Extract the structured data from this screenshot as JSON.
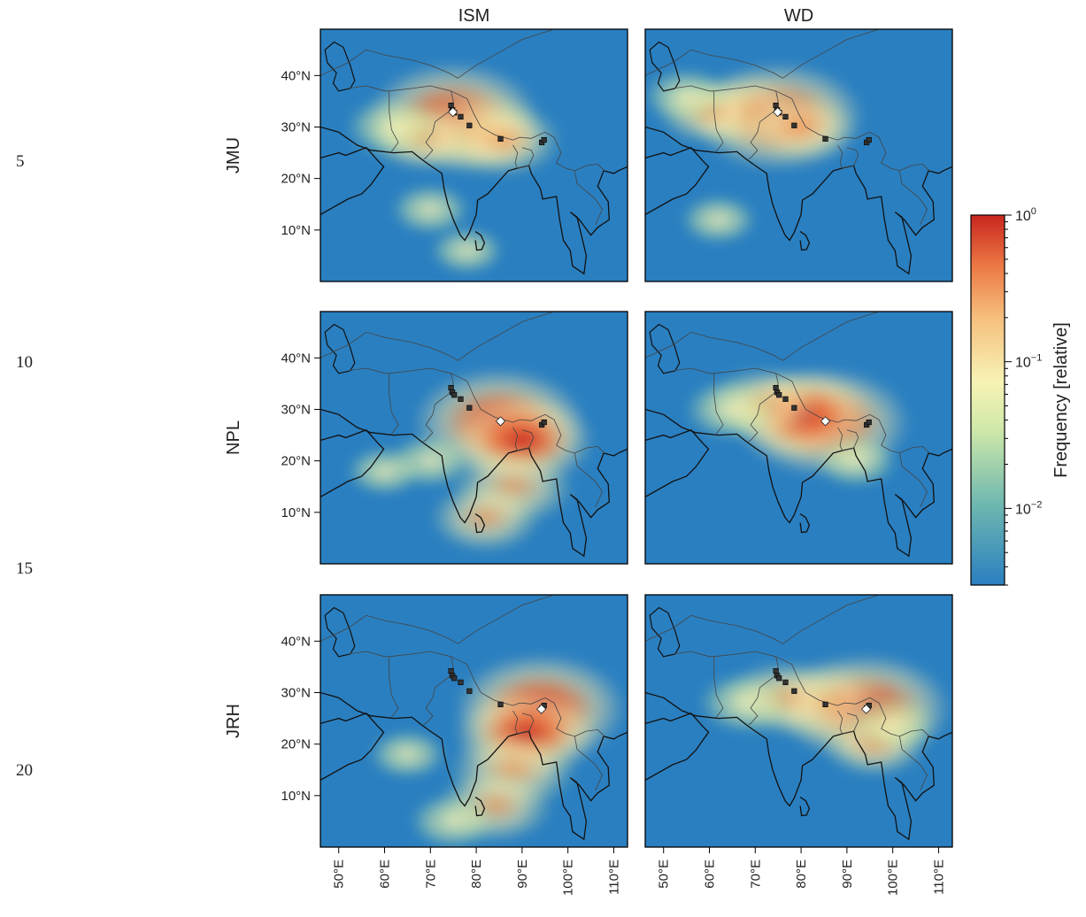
{
  "line_numbers": [
    "5",
    "10",
    "15",
    "20"
  ],
  "columns": [
    "ISM",
    "WD"
  ],
  "rows": [
    "JMU",
    "NPL",
    "JRH"
  ],
  "colorbar_label": "Frequency [relative]",
  "colorbar_ticks": [
    {
      "base": "10",
      "exp": "0"
    },
    {
      "base": "10",
      "exp": "−1"
    },
    {
      "base": "10",
      "exp": "−2"
    }
  ],
  "chart_data": {
    "type": "heatmap",
    "panel_titles": [
      "ISM",
      "WD"
    ],
    "row_labels": [
      "JMU",
      "NPL",
      "JRH"
    ],
    "lat_ticks": [
      "10°N",
      "20°N",
      "30°N",
      "40°N"
    ],
    "lon_ticks": [
      "50°E",
      "60°E",
      "70°E",
      "80°E",
      "90°E",
      "100°E",
      "110°E"
    ],
    "lon_range": [
      46,
      113
    ],
    "lat_range": [
      0,
      49
    ],
    "colorscale": "log",
    "color_range": [
      0.003,
      1
    ],
    "colors": {
      "low": "#2a7fc0",
      "mid": "#f7f3b5",
      "high": "#c8251e"
    },
    "stations": [
      {
        "lon": 74.5,
        "lat": 34.2
      },
      {
        "lon": 74.8,
        "lat": 33.3
      },
      {
        "lon": 75.2,
        "lat": 32.8
      },
      {
        "lon": 76.6,
        "lat": 32.0
      },
      {
        "lon": 78.5,
        "lat": 30.3
      },
      {
        "lon": 85.3,
        "lat": 27.7
      },
      {
        "lon": 94.3,
        "lat": 27.0
      },
      {
        "lon": 94.8,
        "lat": 27.5
      }
    ],
    "release_sites": [
      {
        "row": "JMU",
        "lon": 74.9,
        "lat": 32.9
      },
      {
        "row": "NPL",
        "lon": 85.3,
        "lat": 27.7
      },
      {
        "row": "JRH",
        "lon": 94.2,
        "lat": 26.8
      }
    ],
    "hotspots": {
      "ISM-JMU": [
        [
          75,
          32,
          1.0
        ],
        [
          80,
          29,
          0.5
        ],
        [
          86,
          27.5,
          0.3
        ],
        [
          68,
          28,
          0.2
        ],
        [
          62,
          30,
          0.15
        ],
        [
          70,
          14,
          0.06
        ],
        [
          78,
          6,
          0.04
        ]
      ],
      "WD-JMU": [
        [
          75,
          32,
          1.0
        ],
        [
          68,
          33,
          0.35
        ],
        [
          60,
          33,
          0.2
        ],
        [
          80,
          30,
          0.25
        ],
        [
          62,
          12,
          0.05
        ],
        [
          55,
          36,
          0.1
        ]
      ],
      "ISM-NPL": [
        [
          85,
          27.5,
          1.0
        ],
        [
          90,
          24,
          0.6
        ],
        [
          88,
          15,
          0.35
        ],
        [
          82,
          9,
          0.25
        ],
        [
          70,
          20,
          0.08
        ],
        [
          60,
          18,
          0.05
        ]
      ],
      "WD-NPL": [
        [
          85,
          27.5,
          1.0
        ],
        [
          80,
          29,
          0.6
        ],
        [
          72,
          31,
          0.3
        ],
        [
          65,
          30,
          0.15
        ],
        [
          92,
          20,
          0.08
        ]
      ],
      "ISM-JRH": [
        [
          94,
          27,
          1.0
        ],
        [
          91,
          22,
          0.6
        ],
        [
          88,
          15,
          0.4
        ],
        [
          84,
          8,
          0.3
        ],
        [
          75,
          5,
          0.1
        ],
        [
          65,
          18,
          0.05
        ]
      ],
      "WD-JRH": [
        [
          94,
          27,
          1.0
        ],
        [
          85,
          28,
          0.45
        ],
        [
          76,
          29,
          0.3
        ],
        [
          68,
          28,
          0.15
        ],
        [
          96,
          20,
          0.2
        ],
        [
          100,
          24,
          0.12
        ]
      ]
    }
  }
}
